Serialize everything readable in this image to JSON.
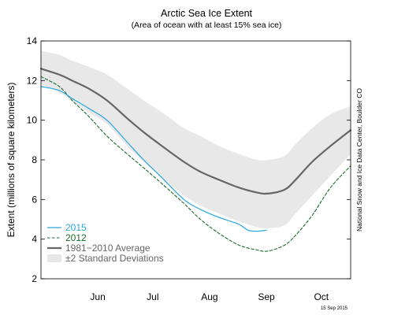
{
  "chart_data": {
    "type": "line",
    "title": "Arctic Sea Ice Extent",
    "subtitle": "(Area of ocean with at least 15% sea ice)",
    "xlabel": "",
    "ylabel": "Extent (millions of square kilometers)",
    "xlim": [
      "2015-05-15",
      "2015-10-31"
    ],
    "ylim": [
      2,
      14
    ],
    "yticks": [
      2,
      4,
      6,
      8,
      10,
      12,
      14
    ],
    "xticks": [
      {
        "label": "Jun",
        "date": "2015-06-15"
      },
      {
        "label": "Jul",
        "date": "2015-07-15"
      },
      {
        "label": "Aug",
        "date": "2015-08-15"
      },
      {
        "label": "Sep",
        "date": "2015-09-15"
      },
      {
        "label": "Oct",
        "date": "2015-10-15"
      }
    ],
    "legend_position": "bottom-left",
    "grid": false,
    "series": [
      {
        "name": "2015",
        "color": "#29a8e0",
        "style": "solid",
        "x": [
          "2015-05-15",
          "2015-05-25",
          "2015-06-01",
          "2015-06-10",
          "2015-06-20",
          "2015-07-01",
          "2015-07-10",
          "2015-07-20",
          "2015-08-01",
          "2015-08-10",
          "2015-08-20",
          "2015-08-31",
          "2015-09-05",
          "2015-09-10",
          "2015-09-15"
        ],
        "values": [
          11.7,
          11.5,
          11.1,
          10.6,
          10.0,
          8.9,
          8.0,
          7.1,
          6.0,
          5.5,
          5.1,
          4.75,
          4.45,
          4.4,
          4.45
        ]
      },
      {
        "name": "2012",
        "color": "#1a6b2a",
        "style": "dashed",
        "x": [
          "2015-05-15",
          "2015-05-25",
          "2015-06-01",
          "2015-06-10",
          "2015-06-20",
          "2015-07-01",
          "2015-07-10",
          "2015-07-20",
          "2015-08-01",
          "2015-08-10",
          "2015-08-20",
          "2015-08-31",
          "2015-09-10",
          "2015-09-16",
          "2015-09-25",
          "2015-10-01",
          "2015-10-10",
          "2015-10-20",
          "2015-10-31"
        ],
        "values": [
          12.2,
          11.7,
          11.0,
          10.2,
          9.2,
          8.3,
          7.6,
          6.8,
          5.8,
          5.0,
          4.3,
          3.7,
          3.45,
          3.4,
          3.7,
          4.2,
          5.2,
          6.6,
          7.7
        ]
      },
      {
        "name": "1981−2010 Average",
        "color": "#666666",
        "style": "solid",
        "x": [
          "2015-05-15",
          "2015-05-25",
          "2015-06-01",
          "2015-06-10",
          "2015-06-20",
          "2015-07-01",
          "2015-07-10",
          "2015-07-20",
          "2015-08-01",
          "2015-08-10",
          "2015-08-20",
          "2015-08-31",
          "2015-09-10",
          "2015-09-16",
          "2015-09-25",
          "2015-10-01",
          "2015-10-10",
          "2015-10-20",
          "2015-10-31"
        ],
        "values": [
          12.6,
          12.3,
          12.0,
          11.6,
          11.0,
          10.1,
          9.4,
          8.7,
          7.9,
          7.4,
          7.0,
          6.6,
          6.35,
          6.3,
          6.5,
          7.0,
          7.9,
          8.7,
          9.5
        ]
      }
    ],
    "band": {
      "name": "±2 Standard Deviations",
      "color": "#e8e8e8",
      "x": [
        "2015-05-15",
        "2015-05-25",
        "2015-06-01",
        "2015-06-10",
        "2015-06-20",
        "2015-07-01",
        "2015-07-10",
        "2015-07-20",
        "2015-08-01",
        "2015-08-10",
        "2015-08-20",
        "2015-08-31",
        "2015-09-10",
        "2015-09-16",
        "2015-09-25",
        "2015-10-01",
        "2015-10-10",
        "2015-10-20",
        "2015-10-31"
      ],
      "upper": [
        13.5,
        13.3,
        13.0,
        12.7,
        12.3,
        11.6,
        11.0,
        10.4,
        9.6,
        9.2,
        8.7,
        8.3,
        8.0,
        8.0,
        8.2,
        8.8,
        9.6,
        10.3,
        10.7
      ],
      "lower": [
        11.8,
        11.4,
        11.0,
        10.4,
        9.8,
        8.7,
        7.9,
        7.1,
        6.2,
        5.7,
        5.3,
        4.9,
        4.6,
        4.55,
        4.7,
        5.3,
        6.2,
        7.2,
        8.3
      ]
    },
    "credit": "National Snow and Ice Data Center, Boulder CO",
    "date_stamp": "15 Sep 2015"
  }
}
